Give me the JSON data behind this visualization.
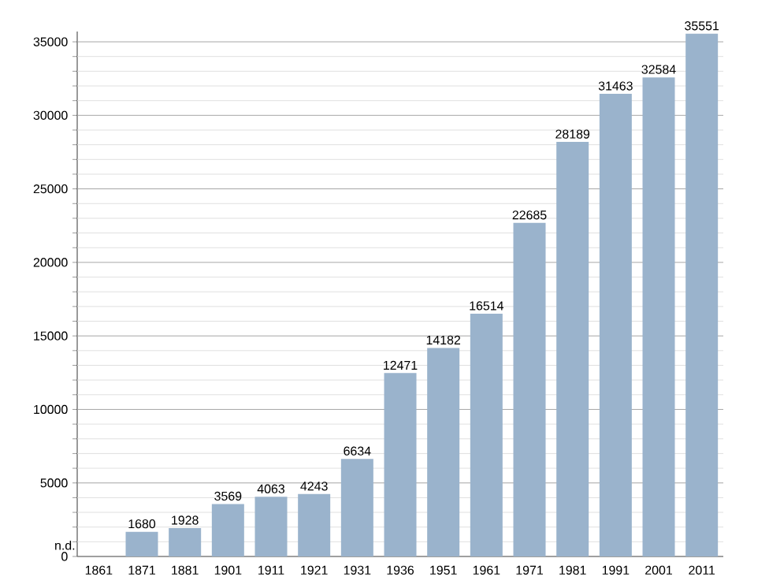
{
  "chart_data": {
    "type": "bar",
    "categories": [
      "1861",
      "1871",
      "1881",
      "1901",
      "1911",
      "1921",
      "1931",
      "1936",
      "1951",
      "1961",
      "1971",
      "1981",
      "1991",
      "2001",
      "2011"
    ],
    "values": [
      null,
      1680,
      1928,
      3569,
      4063,
      4243,
      6634,
      12471,
      14182,
      16514,
      22685,
      28189,
      31463,
      32584,
      35551
    ],
    "value_labels": [
      "n.d.",
      "1680",
      "1928",
      "3569",
      "4063",
      "4243",
      "6634",
      "12471",
      "14182",
      "16514",
      "22685",
      "28189",
      "31463",
      "32584",
      "35551"
    ],
    "color": "#9ab3cc",
    "ylim": [
      0,
      35700
    ],
    "yticks": [
      0,
      {
        "value": 1000,
        "label": null
      },
      {
        "value": 2000,
        "label": null
      },
      {
        "value": 3000,
        "label": null
      },
      {
        "value": 4000,
        "label": null
      },
      5000,
      {
        "value": 6000,
        "label": null
      },
      {
        "value": 7000,
        "label": null
      },
      {
        "value": 8000,
        "label": null
      },
      {
        "value": 9000,
        "label": null
      },
      10000,
      {
        "value": 11000,
        "label": null
      },
      {
        "value": 12000,
        "label": null
      },
      {
        "value": 13000,
        "label": null
      },
      {
        "value": 14000,
        "label": null
      },
      15000,
      {
        "value": 16000,
        "label": null
      },
      {
        "value": 17000,
        "label": null
      },
      {
        "value": 18000,
        "label": null
      },
      {
        "value": 19000,
        "label": null
      },
      20000,
      {
        "value": 21000,
        "label": null
      },
      {
        "value": 22000,
        "label": null
      },
      {
        "value": 23000,
        "label": null
      },
      {
        "value": 24000,
        "label": null
      },
      25000,
      {
        "value": 26000,
        "label": null
      },
      {
        "value": 27000,
        "label": null
      },
      {
        "value": 28000,
        "label": null
      },
      {
        "value": 29000,
        "label": null
      },
      30000,
      {
        "value": 31000,
        "label": null
      },
      {
        "value": 32000,
        "label": null
      },
      {
        "value": 33000,
        "label": null
      },
      {
        "value": 34000,
        "label": null
      },
      35000
    ],
    "grid": "y"
  }
}
